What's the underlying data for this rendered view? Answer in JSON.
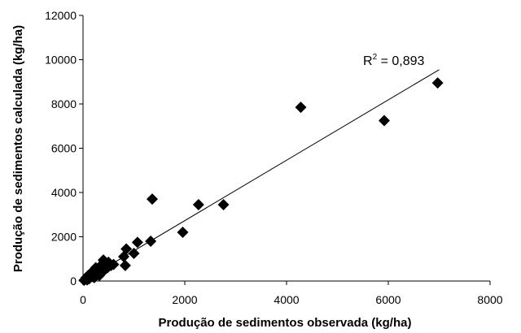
{
  "chart_data": {
    "type": "scatter",
    "title": "",
    "xlabel": "Produção de sedimentos observada (kg/ha)",
    "ylabel": "Produção de sedimentos calculada (kg/ha)",
    "xlim": [
      0,
      8000
    ],
    "ylim": [
      0,
      12000
    ],
    "x_ticks": [
      "0",
      "2000",
      "4000",
      "6000",
      "8000"
    ],
    "y_ticks": [
      "0",
      "2000",
      "4000",
      "6000",
      "8000",
      "10000",
      "12000"
    ],
    "grid": false,
    "legend": "none",
    "marker": "diamond",
    "marker_color": "#000000",
    "annotation": {
      "base": "R",
      "sup": "2",
      "rest": " = 0,893"
    },
    "trendline": {
      "x": [
        0,
        7000
      ],
      "y": [
        0,
        9550
      ]
    },
    "points": [
      {
        "x": 20,
        "y": 30
      },
      {
        "x": 40,
        "y": 80
      },
      {
        "x": 60,
        "y": 150
      },
      {
        "x": 80,
        "y": 50
      },
      {
        "x": 100,
        "y": 250
      },
      {
        "x": 120,
        "y": 100
      },
      {
        "x": 150,
        "y": 350
      },
      {
        "x": 180,
        "y": 200
      },
      {
        "x": 200,
        "y": 450
      },
      {
        "x": 220,
        "y": 150
      },
      {
        "x": 250,
        "y": 600
      },
      {
        "x": 270,
        "y": 300
      },
      {
        "x": 300,
        "y": 500
      },
      {
        "x": 320,
        "y": 250
      },
      {
        "x": 350,
        "y": 700
      },
      {
        "x": 380,
        "y": 400
      },
      {
        "x": 400,
        "y": 950
      },
      {
        "x": 420,
        "y": 550
      },
      {
        "x": 450,
        "y": 800
      },
      {
        "x": 480,
        "y": 600
      },
      {
        "x": 500,
        "y": 850
      },
      {
        "x": 550,
        "y": 700
      },
      {
        "x": 600,
        "y": 750
      },
      {
        "x": 800,
        "y": 1100
      },
      {
        "x": 830,
        "y": 700
      },
      {
        "x": 850,
        "y": 1450
      },
      {
        "x": 1000,
        "y": 1250
      },
      {
        "x": 1070,
        "y": 1750
      },
      {
        "x": 1330,
        "y": 1800
      },
      {
        "x": 1360,
        "y": 3700
      },
      {
        "x": 1960,
        "y": 2200
      },
      {
        "x": 2270,
        "y": 3450
      },
      {
        "x": 2760,
        "y": 3450
      },
      {
        "x": 4280,
        "y": 7850
      },
      {
        "x": 5920,
        "y": 7250
      },
      {
        "x": 6970,
        "y": 8950
      }
    ]
  }
}
